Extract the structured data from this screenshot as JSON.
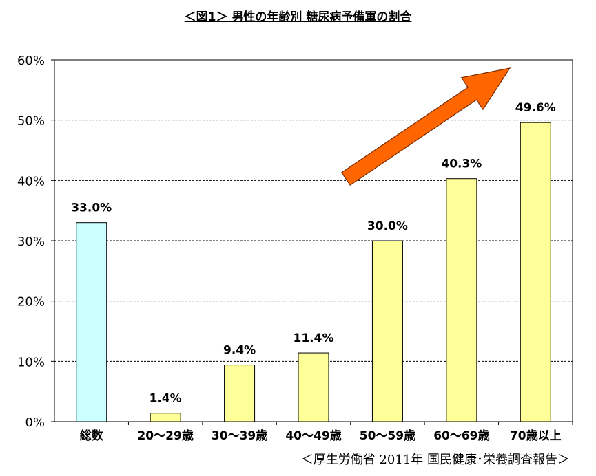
{
  "title": "＜図1＞ 男性の年齢別 糖尿病予備軍の割合",
  "source": "＜厚生労働省  2011年 国民健康･栄養調査報告＞",
  "chart_data": {
    "type": "bar",
    "title": "＜図1＞ 男性の年齢別 糖尿病予備軍の割合",
    "xlabel": "",
    "ylabel": "",
    "ylim": [
      0,
      60
    ],
    "y_ticks": [
      "0%",
      "10%",
      "20%",
      "30%",
      "40%",
      "50%",
      "60%"
    ],
    "y_tick_values": [
      0,
      10,
      20,
      30,
      40,
      50,
      60
    ],
    "grid": true,
    "categories": [
      "総数",
      "20～29歳",
      "30～39歳",
      "40～49歳",
      "50～59歳",
      "60～69歳",
      "70歳以上"
    ],
    "values": [
      33.0,
      1.4,
      9.4,
      11.4,
      30.0,
      40.3,
      49.6
    ],
    "labels": [
      "33.0%",
      "1.4%",
      "9.4%",
      "11.4%",
      "30.0%",
      "40.3%",
      "49.6%"
    ],
    "bar_colors": [
      "#ccffff",
      "#ffff99",
      "#ffff99",
      "#ffff99",
      "#ffff99",
      "#ffff99",
      "#ffff99"
    ],
    "annotation": {
      "type": "arrow",
      "color": "#ff6600",
      "meaning": "increasing trend"
    }
  }
}
